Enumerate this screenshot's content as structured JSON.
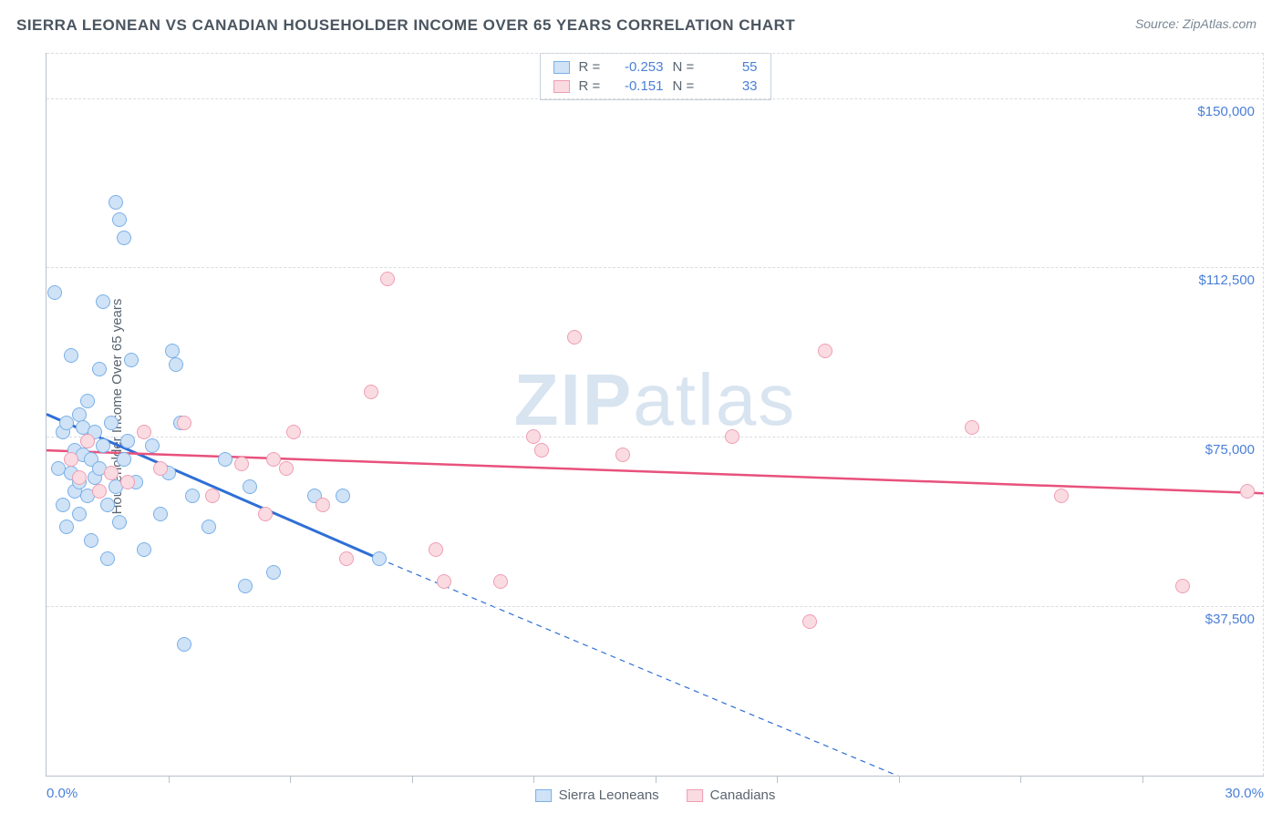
{
  "title": "SIERRA LEONEAN VS CANADIAN HOUSEHOLDER INCOME OVER 65 YEARS CORRELATION CHART",
  "source_label": "Source:",
  "source_value": "ZipAtlas.com",
  "watermark_a": "ZIP",
  "watermark_b": "atlas",
  "chart": {
    "type": "scatter",
    "y_axis_label": "Householder Income Over 65 years",
    "xlim": [
      0,
      30
    ],
    "ylim": [
      0,
      160000
    ],
    "x_min_label": "0.0%",
    "x_max_label": "30.0%",
    "y_ticks": [
      37500,
      75000,
      112500,
      150000
    ],
    "y_tick_labels": [
      "$37,500",
      "$75,000",
      "$112,500",
      "$150,000"
    ],
    "x_minor_ticks": [
      3,
      6,
      9,
      12,
      15,
      18,
      21,
      24,
      27
    ],
    "grid_dash_color": "#d8dde2",
    "axis_color": "#b8c2cc",
    "background_color": "#ffffff",
    "value_color": "#4a7fd8",
    "text_color": "#5a6570",
    "marker_radius": 8,
    "marker_border_width": 1.5,
    "series": [
      {
        "key": "sierra",
        "name": "Sierra Leoneans",
        "fill": "#cfe2f6",
        "stroke": "#7ab0e8",
        "trend_color": "#2e6fd6",
        "trend_width": 3,
        "r": -0.253,
        "n": 55,
        "trend": {
          "x1": 0,
          "y1": 80000,
          "x2": 8.2,
          "y2": 48000
        },
        "trend_ext": {
          "x1": 8.2,
          "y1": 48000,
          "x2": 21.5,
          "y2": -2000
        },
        "points": [
          [
            0.2,
            107000
          ],
          [
            0.3,
            68000
          ],
          [
            0.4,
            60000
          ],
          [
            0.4,
            76000
          ],
          [
            0.5,
            78000
          ],
          [
            0.5,
            55000
          ],
          [
            0.6,
            93000
          ],
          [
            0.6,
            67000
          ],
          [
            0.7,
            72000
          ],
          [
            0.7,
            63000
          ],
          [
            0.8,
            80000
          ],
          [
            0.8,
            58000
          ],
          [
            0.8,
            65000
          ],
          [
            0.9,
            71000
          ],
          [
            0.9,
            77000
          ],
          [
            1.0,
            74000
          ],
          [
            1.0,
            62000
          ],
          [
            1.0,
            83000
          ],
          [
            1.1,
            70000
          ],
          [
            1.1,
            52000
          ],
          [
            1.2,
            76000
          ],
          [
            1.2,
            66000
          ],
          [
            1.3,
            68000
          ],
          [
            1.3,
            90000
          ],
          [
            1.4,
            105000
          ],
          [
            1.4,
            73000
          ],
          [
            1.5,
            60000
          ],
          [
            1.5,
            48000
          ],
          [
            1.6,
            78000
          ],
          [
            1.7,
            127000
          ],
          [
            1.7,
            64000
          ],
          [
            1.8,
            123000
          ],
          [
            1.8,
            56000
          ],
          [
            1.9,
            119000
          ],
          [
            1.9,
            70000
          ],
          [
            2.0,
            74000
          ],
          [
            2.1,
            92000
          ],
          [
            2.2,
            65000
          ],
          [
            2.4,
            50000
          ],
          [
            2.6,
            73000
          ],
          [
            2.8,
            58000
          ],
          [
            3.0,
            67000
          ],
          [
            3.1,
            94000
          ],
          [
            3.2,
            91000
          ],
          [
            3.3,
            78000
          ],
          [
            3.4,
            29000
          ],
          [
            3.6,
            62000
          ],
          [
            4.0,
            55000
          ],
          [
            4.4,
            70000
          ],
          [
            4.9,
            42000
          ],
          [
            5.0,
            64000
          ],
          [
            5.6,
            45000
          ],
          [
            6.6,
            62000
          ],
          [
            7.3,
            62000
          ],
          [
            8.2,
            48000
          ]
        ]
      },
      {
        "key": "canadian",
        "name": "Canadians",
        "fill": "#fadbe2",
        "stroke": "#ef9eb3",
        "trend_color": "#e8517c",
        "trend_width": 2.5,
        "r": -0.151,
        "n": 33,
        "trend": {
          "x1": 0,
          "y1": 72000,
          "x2": 30,
          "y2": 62500
        },
        "points": [
          [
            0.6,
            70000
          ],
          [
            0.8,
            66000
          ],
          [
            1.0,
            74000
          ],
          [
            1.3,
            63000
          ],
          [
            1.6,
            67000
          ],
          [
            2.0,
            65000
          ],
          [
            2.4,
            76000
          ],
          [
            2.8,
            68000
          ],
          [
            3.4,
            78000
          ],
          [
            4.1,
            62000
          ],
          [
            4.8,
            69000
          ],
          [
            5.4,
            58000
          ],
          [
            5.6,
            70000
          ],
          [
            5.9,
            68000
          ],
          [
            6.1,
            76000
          ],
          [
            6.8,
            60000
          ],
          [
            7.4,
            48000
          ],
          [
            8.0,
            85000
          ],
          [
            8.4,
            110000
          ],
          [
            9.6,
            50000
          ],
          [
            9.8,
            43000
          ],
          [
            11.2,
            43000
          ],
          [
            12.0,
            75000
          ],
          [
            12.2,
            72000
          ],
          [
            13.0,
            97000
          ],
          [
            14.2,
            71000
          ],
          [
            16.9,
            75000
          ],
          [
            18.8,
            34000
          ],
          [
            19.2,
            94000
          ],
          [
            22.8,
            77000
          ],
          [
            25.0,
            62000
          ],
          [
            28.0,
            42000
          ],
          [
            29.6,
            63000
          ]
        ]
      }
    ]
  }
}
